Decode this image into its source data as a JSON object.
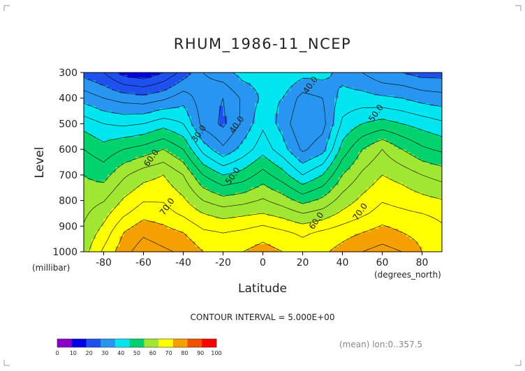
{
  "chart_data": {
    "type": "heatmap",
    "title": "RHUM_1986-11_NCEP",
    "xlabel": "Latitude",
    "ylabel": "Level",
    "x_unit": "(degrees_north)",
    "y_unit": "(millibar)",
    "xlim": [
      -90,
      90
    ],
    "ylim": [
      1000,
      300
    ],
    "x_ticks": [
      -80,
      -60,
      -40,
      -20,
      0,
      20,
      40,
      60,
      80
    ],
    "x_tick_labels": [
      "-80",
      "-60",
      "-40",
      "-20",
      "0",
      "20",
      "40",
      "60",
      "80"
    ],
    "y_ticks": [
      300,
      400,
      500,
      600,
      700,
      800,
      900,
      1000
    ],
    "y_tick_labels": [
      "300",
      "400",
      "500",
      "600",
      "700",
      "800",
      "900",
      "1000"
    ],
    "contour_interval_text": "CONTOUR INTERVAL = 5.000E+00",
    "footer_text": "(mean) lon:0..357.5",
    "color_levels": [
      0,
      10,
      20,
      30,
      40,
      50,
      60,
      70,
      80,
      90,
      100
    ],
    "color_level_labels": [
      "0",
      "10",
      "20",
      "30",
      "40",
      "50",
      "60",
      "70",
      "80",
      "90",
      "100"
    ],
    "colors": [
      "#8a00c8",
      "#0000e6",
      "#1e50f0",
      "#2896f0",
      "#00e6f0",
      "#00d26e",
      "#a0e632",
      "#ffff00",
      "#f5a000",
      "#f05000",
      "#ff0000"
    ],
    "contour_labels": [
      {
        "text": "30.0",
        "lat": -31,
        "level": 545
      },
      {
        "text": "40.0",
        "lat": -12,
        "level": 510
      },
      {
        "text": "40.0",
        "lat": 25,
        "level": 355
      },
      {
        "text": "50.0",
        "lat": 58,
        "level": 465
      },
      {
        "text": "50.0",
        "lat": -14,
        "level": 710
      },
      {
        "text": "60.0",
        "lat": -55,
        "level": 640
      },
      {
        "text": "60.0",
        "lat": 28,
        "level": 885
      },
      {
        "text": "70.0",
        "lat": -47,
        "level": 830
      },
      {
        "text": "70.0",
        "lat": 50,
        "level": 850
      }
    ],
    "profiles": {
      "lats": [
        -90,
        -80,
        -70,
        -60,
        -50,
        -40,
        -30,
        -20,
        -10,
        0,
        10,
        20,
        30,
        40,
        50,
        60,
        70,
        80,
        90
      ],
      "levels": [
        1000,
        925,
        850,
        700,
        600,
        500,
        400,
        300
      ],
      "values": [
        [
          68,
          66,
          64,
          60,
          55,
          48,
          38,
          28
        ],
        [
          76,
          72,
          68,
          58,
          52,
          45,
          35,
          25
        ],
        [
          83,
          80,
          74,
          64,
          55,
          44,
          33,
          18
        ],
        [
          88,
          84,
          78,
          68,
          57,
          45,
          32,
          16
        ],
        [
          86,
          82,
          77,
          70,
          60,
          48,
          34,
          20
        ],
        [
          84,
          80,
          74,
          65,
          55,
          45,
          38,
          27
        ],
        [
          80,
          76,
          70,
          55,
          43,
          33,
          32,
          35
        ],
        [
          78,
          75,
          68,
          50,
          36,
          29,
          30,
          38
        ],
        [
          80,
          76,
          69,
          52,
          42,
          36,
          36,
          42
        ],
        [
          82,
          78,
          70,
          57,
          48,
          44,
          41,
          42
        ],
        [
          80,
          76,
          68,
          52,
          42,
          38,
          40,
          45
        ],
        [
          78,
          74,
          65,
          45,
          34,
          30,
          33,
          42
        ],
        [
          79,
          76,
          67,
          50,
          38,
          33,
          35,
          42
        ],
        [
          82,
          78,
          71,
          60,
          52,
          46,
          42,
          38
        ],
        [
          85,
          80,
          74,
          66,
          60,
          50,
          42,
          35
        ],
        [
          87,
          82,
          77,
          70,
          65,
          52,
          41,
          31
        ],
        [
          85,
          80,
          76,
          68,
          60,
          50,
          40,
          30
        ],
        [
          80,
          78,
          75,
          65,
          56,
          48,
          38,
          28
        ],
        [
          78,
          76,
          74,
          63,
          54,
          46,
          37,
          28
        ]
      ]
    }
  }
}
